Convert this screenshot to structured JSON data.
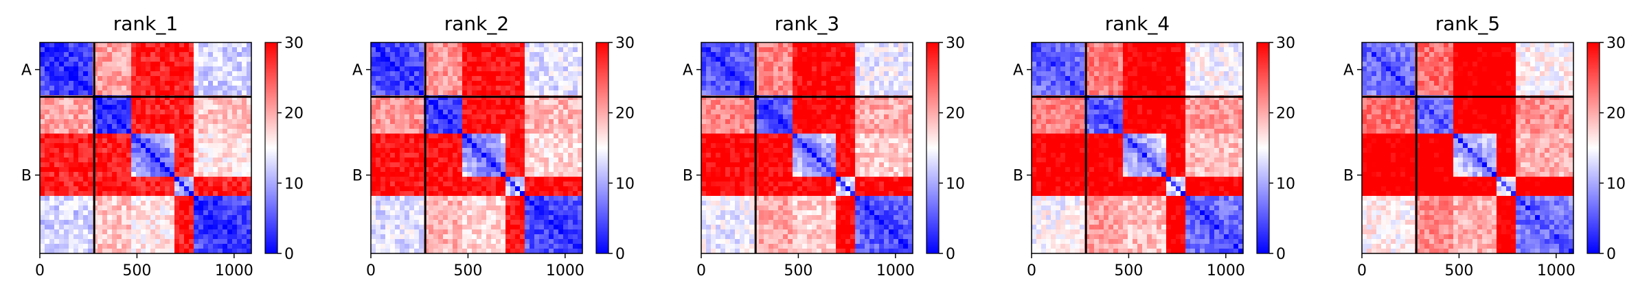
{
  "figure": {
    "colors": {
      "low": "#0000ff",
      "mid": "#ffffff",
      "high": "#ff0000",
      "frame": "#000000"
    }
  },
  "chart_data": [
    {
      "type": "heatmap",
      "title": "rank_1",
      "x_ticks": [
        0,
        500,
        1000
      ],
      "xlim": [
        0,
        1089
      ],
      "y_ticks": [
        "A",
        "B"
      ],
      "chain_boundary": 280,
      "chain_lengths": {
        "A": 280,
        "B": 809
      },
      "colorbar": {
        "min": 0,
        "max": 30,
        "ticks": [
          0,
          10,
          20,
          30
        ],
        "colormap": "bwr"
      }
    },
    {
      "type": "heatmap",
      "title": "rank_2",
      "x_ticks": [
        0,
        500,
        1000
      ],
      "xlim": [
        0,
        1089
      ],
      "y_ticks": [
        "A",
        "B"
      ],
      "chain_boundary": 280,
      "chain_lengths": {
        "A": 280,
        "B": 809
      },
      "colorbar": {
        "min": 0,
        "max": 30,
        "ticks": [
          0,
          10,
          20,
          30
        ],
        "colormap": "bwr"
      }
    },
    {
      "type": "heatmap",
      "title": "rank_3",
      "x_ticks": [
        0,
        500,
        1000
      ],
      "xlim": [
        0,
        1089
      ],
      "y_ticks": [
        "A",
        "B"
      ],
      "chain_boundary": 280,
      "chain_lengths": {
        "A": 280,
        "B": 809
      },
      "colorbar": {
        "min": 0,
        "max": 30,
        "ticks": [
          0,
          10,
          20,
          30
        ],
        "colormap": "bwr"
      }
    },
    {
      "type": "heatmap",
      "title": "rank_4",
      "x_ticks": [
        0,
        500,
        1000
      ],
      "xlim": [
        0,
        1089
      ],
      "y_ticks": [
        "A",
        "B"
      ],
      "chain_boundary": 280,
      "chain_lengths": {
        "A": 280,
        "B": 809
      },
      "colorbar": {
        "min": 0,
        "max": 30,
        "ticks": [
          0,
          10,
          20,
          30
        ],
        "colormap": "bwr"
      }
    },
    {
      "type": "heatmap",
      "title": "rank_5",
      "x_ticks": [
        0,
        500,
        1000
      ],
      "xlim": [
        0,
        1089
      ],
      "y_ticks": [
        "A",
        "B"
      ],
      "chain_boundary": 280,
      "chain_lengths": {
        "A": 280,
        "B": 809
      },
      "colorbar": {
        "min": 0,
        "max": 30,
        "ticks": [
          0,
          10,
          20,
          30
        ],
        "colormap": "bwr"
      }
    }
  ]
}
